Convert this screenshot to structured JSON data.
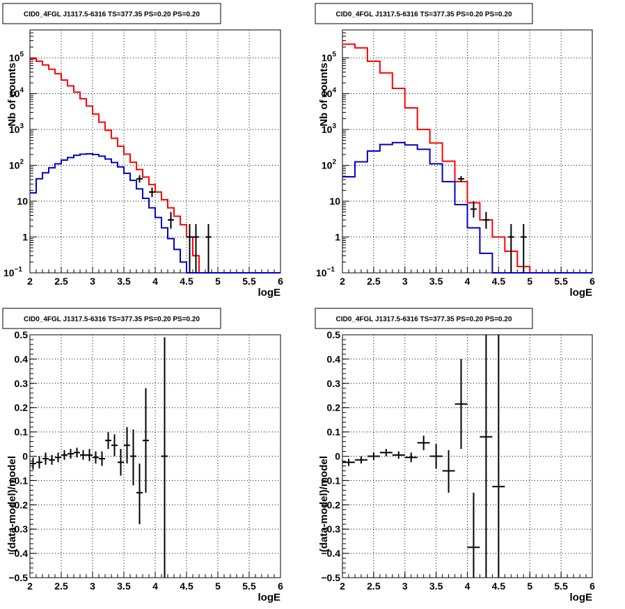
{
  "chart_data": [
    {
      "id": "top-left",
      "type": "histogram",
      "title": "CID0_4FGL J1317.5-6316 TS=377.35 PS=0.20 PS=0.20",
      "xlabel": "logE",
      "ylabel": "Nb of counts",
      "xlim": [
        2,
        6
      ],
      "ylim": [
        0.1,
        600000
      ],
      "yscale": "log",
      "grid": true,
      "xticks": [
        "2",
        "2.5",
        "3",
        "3.5",
        "4",
        "4.5",
        "5",
        "5.5",
        "6"
      ],
      "yticks": [
        {
          "v": 0.1,
          "label": "10",
          "sup": "−1"
        },
        {
          "v": 1,
          "label": "1",
          "sup": ""
        },
        {
          "v": 10,
          "label": "10",
          "sup": ""
        },
        {
          "v": 100,
          "label": "10",
          "sup": "2"
        },
        {
          "v": 1000,
          "label": "10",
          "sup": "3"
        },
        {
          "v": 10000,
          "label": "10",
          "sup": "4"
        },
        {
          "v": 100000,
          "label": "10",
          "sup": "5"
        }
      ],
      "bin_edges": [
        2.0,
        2.1,
        2.2,
        2.3,
        2.4,
        2.5,
        2.6,
        2.7,
        2.8,
        2.9,
        3.0,
        3.1,
        3.2,
        3.3,
        3.4,
        3.5,
        3.6,
        3.7,
        3.8,
        3.9,
        4.0,
        4.1,
        4.2,
        4.3,
        4.4,
        4.5,
        4.6,
        4.7,
        4.8,
        4.9,
        5.0,
        5.1,
        5.2,
        5.3,
        5.4,
        5.5,
        5.6,
        5.7,
        5.8,
        5.9,
        6.0
      ],
      "series": [
        {
          "kind": "step",
          "color": "#ff0000",
          "values": [
            95000,
            80000,
            63000,
            48000,
            36000,
            24000,
            16500,
            11000,
            7200,
            4500,
            2700,
            1600,
            950,
            570,
            340,
            205,
            122,
            76,
            47,
            29,
            18,
            11,
            6.5,
            3.8,
            2.2,
            1.0,
            0.3,
            0.1,
            0.1,
            0.1,
            0.1,
            0.1,
            0.1,
            0.1,
            0.1,
            0.1,
            0.1,
            0.1,
            0.1,
            0.1
          ]
        },
        {
          "kind": "step",
          "color": "#0000cc",
          "values": [
            17,
            42,
            62,
            85,
            110,
            140,
            165,
            190,
            205,
            210,
            200,
            180,
            150,
            120,
            90,
            60,
            38,
            22,
            12,
            6.5,
            3.5,
            1.8,
            0.9,
            0.45,
            0.2,
            0.1,
            0.1,
            0.1,
            0.1,
            0.1,
            0.1,
            0.1,
            0.1,
            0.1,
            0.1,
            0.1,
            0.1,
            0.1,
            0.1,
            0.1
          ]
        },
        {
          "kind": "points",
          "color": "#000000",
          "points": [
            {
              "x": 3.75,
              "y": 42,
              "lo": 33,
              "hi": 53
            },
            {
              "x": 3.95,
              "y": 18,
              "lo": 13,
              "hi": 24
            },
            {
              "x": 4.25,
              "y": 3,
              "lo": 1.7,
              "hi": 5
            },
            {
              "x": 4.55,
              "y": 1,
              "lo": 0.1,
              "hi": 2.3
            },
            {
              "x": 4.65,
              "y": 1,
              "lo": 0.1,
              "hi": 2.3
            },
            {
              "x": 4.85,
              "y": 1,
              "lo": 0.1,
              "hi": 2.3
            }
          ]
        }
      ]
    },
    {
      "id": "top-right",
      "type": "histogram",
      "title": "CID0_4FGL J1317.5-6316 TS=377.35 PS=0.20 PS=0.20",
      "xlabel": "logE",
      "ylabel": "Nb of counts",
      "xlim": [
        2,
        6
      ],
      "ylim": [
        0.1,
        600000
      ],
      "yscale": "log",
      "grid": true,
      "xticks": [
        "2",
        "2.5",
        "3",
        "3.5",
        "4",
        "4.5",
        "5",
        "5.5",
        "6"
      ],
      "yticks": [
        {
          "v": 0.1,
          "label": "10",
          "sup": "−1"
        },
        {
          "v": 1,
          "label": "1",
          "sup": ""
        },
        {
          "v": 10,
          "label": "10",
          "sup": ""
        },
        {
          "v": 100,
          "label": "10",
          "sup": "2"
        },
        {
          "v": 1000,
          "label": "10",
          "sup": "3"
        },
        {
          "v": 10000,
          "label": "10",
          "sup": "4"
        },
        {
          "v": 100000,
          "label": "10",
          "sup": "5"
        }
      ],
      "bin_edges": [
        2.0,
        2.2,
        2.4,
        2.6,
        2.8,
        3.0,
        3.2,
        3.4,
        3.6,
        3.8,
        4.0,
        4.2,
        4.4,
        4.6,
        4.8,
        5.0,
        5.2,
        5.4,
        5.6,
        5.8,
        6.0
      ],
      "series": [
        {
          "kind": "step",
          "color": "#ff0000",
          "values": [
            240000,
            190000,
            80000,
            38000,
            14000,
            4000,
            1000,
            420,
            130,
            35,
            9,
            3,
            1,
            0.4,
            0.15,
            0.1,
            0.1,
            0.1,
            0.1,
            0.1
          ]
        },
        {
          "kind": "step",
          "color": "#0000cc",
          "values": [
            48,
            125,
            250,
            380,
            430,
            370,
            280,
            110,
            35,
            8,
            1.8,
            0.35,
            0.1,
            0.1,
            0.1,
            0.1,
            0.1,
            0.1,
            0.1,
            0.1
          ]
        },
        {
          "kind": "points",
          "color": "#000000",
          "points": [
            {
              "x": 3.9,
              "y": 42,
              "lo": 35,
              "hi": 50
            },
            {
              "x": 4.1,
              "y": 6,
              "lo": 3.5,
              "hi": 10
            },
            {
              "x": 4.3,
              "y": 3,
              "lo": 1.7,
              "hi": 5
            },
            {
              "x": 4.7,
              "y": 1,
              "lo": 0.1,
              "hi": 2.3
            },
            {
              "x": 4.9,
              "y": 1,
              "lo": 0.1,
              "hi": 2.3
            }
          ]
        }
      ]
    },
    {
      "id": "bottom-left",
      "type": "scatter",
      "title": "CID0_4FGL J1317.5-6316 TS=377.35 PS=0.20 PS=0.20",
      "xlabel": "logE",
      "ylabel": "(data-model)/model",
      "xlim": [
        2,
        6
      ],
      "ylim": [
        -0.5,
        0.5
      ],
      "yscale": "linear",
      "grid": true,
      "xticks": [
        "2",
        "2.5",
        "3",
        "3.5",
        "4",
        "4.5",
        "5",
        "5.5",
        "6"
      ],
      "yticks": [
        {
          "v": -0.5,
          "label": "−0.5",
          "sup": ""
        },
        {
          "v": -0.4,
          "label": "−0.4",
          "sup": ""
        },
        {
          "v": -0.3,
          "label": "−0.3",
          "sup": ""
        },
        {
          "v": -0.2,
          "label": "−0.2",
          "sup": ""
        },
        {
          "v": -0.1,
          "label": "−0.1",
          "sup": ""
        },
        {
          "v": 0,
          "label": "0",
          "sup": ""
        },
        {
          "v": 0.1,
          "label": "0.1",
          "sup": ""
        },
        {
          "v": 0.2,
          "label": "0.2",
          "sup": ""
        },
        {
          "v": 0.3,
          "label": "0.3",
          "sup": ""
        },
        {
          "v": 0.4,
          "label": "0.4",
          "sup": ""
        },
        {
          "v": 0.5,
          "label": "0.5",
          "sup": ""
        }
      ],
      "series": [
        {
          "kind": "points",
          "color": "#000000",
          "xerr": 0.05,
          "points": [
            {
              "x": 2.05,
              "y": -0.03,
              "lo": -0.055,
              "hi": -0.005
            },
            {
              "x": 2.15,
              "y": -0.025,
              "lo": -0.05,
              "hi": 0.0
            },
            {
              "x": 2.25,
              "y": -0.01,
              "lo": -0.035,
              "hi": 0.015
            },
            {
              "x": 2.35,
              "y": -0.015,
              "lo": -0.035,
              "hi": 0.005
            },
            {
              "x": 2.45,
              "y": -0.005,
              "lo": -0.025,
              "hi": 0.015
            },
            {
              "x": 2.55,
              "y": 0.005,
              "lo": -0.015,
              "hi": 0.025
            },
            {
              "x": 2.65,
              "y": 0.01,
              "lo": -0.01,
              "hi": 0.03
            },
            {
              "x": 2.75,
              "y": 0.015,
              "lo": -0.005,
              "hi": 0.035
            },
            {
              "x": 2.85,
              "y": 0.005,
              "lo": -0.015,
              "hi": 0.025
            },
            {
              "x": 2.95,
              "y": 0.005,
              "lo": -0.02,
              "hi": 0.03
            },
            {
              "x": 3.05,
              "y": -0.005,
              "lo": -0.03,
              "hi": 0.02
            },
            {
              "x": 3.15,
              "y": -0.01,
              "lo": -0.04,
              "hi": 0.02
            },
            {
              "x": 3.25,
              "y": 0.065,
              "lo": 0.03,
              "hi": 0.1
            },
            {
              "x": 3.35,
              "y": 0.045,
              "lo": 0.0,
              "hi": 0.09
            },
            {
              "x": 3.45,
              "y": -0.025,
              "lo": -0.08,
              "hi": 0.03
            },
            {
              "x": 3.55,
              "y": 0.045,
              "lo": -0.03,
              "hi": 0.12
            },
            {
              "x": 3.65,
              "y": 0.0,
              "lo": -0.12,
              "hi": 0.11
            },
            {
              "x": 3.75,
              "y": -0.15,
              "lo": -0.28,
              "hi": -0.03
            },
            {
              "x": 3.85,
              "y": 0.065,
              "lo": -0.15,
              "hi": 0.28
            },
            {
              "x": 4.15,
              "y": 0.0,
              "lo": -0.5,
              "hi": 0.49
            }
          ]
        }
      ]
    },
    {
      "id": "bottom-right",
      "type": "scatter",
      "title": "CID0_4FGL J1317.5-6316 TS=377.35 PS=0.20 PS=0.20",
      "xlabel": "logE",
      "ylabel": "(data-model)/model",
      "xlim": [
        2,
        6
      ],
      "ylim": [
        -0.5,
        0.5
      ],
      "yscale": "linear",
      "grid": true,
      "xticks": [
        "2",
        "2.5",
        "3",
        "3.5",
        "4",
        "4.5",
        "5",
        "5.5",
        "6"
      ],
      "yticks": [
        {
          "v": -0.5,
          "label": "−0.5",
          "sup": ""
        },
        {
          "v": -0.4,
          "label": "−0.4",
          "sup": ""
        },
        {
          "v": -0.3,
          "label": "−0.3",
          "sup": ""
        },
        {
          "v": -0.2,
          "label": "−0.2",
          "sup": ""
        },
        {
          "v": -0.1,
          "label": "−0.1",
          "sup": ""
        },
        {
          "v": 0,
          "label": "0",
          "sup": ""
        },
        {
          "v": 0.1,
          "label": "0.1",
          "sup": ""
        },
        {
          "v": 0.2,
          "label": "0.2",
          "sup": ""
        },
        {
          "v": 0.3,
          "label": "0.3",
          "sup": ""
        },
        {
          "v": 0.4,
          "label": "0.4",
          "sup": ""
        },
        {
          "v": 0.5,
          "label": "0.5",
          "sup": ""
        }
      ],
      "series": [
        {
          "kind": "points",
          "color": "#000000",
          "xerr": 0.1,
          "points": [
            {
              "x": 2.1,
              "y": -0.025,
              "lo": -0.04,
              "hi": -0.01
            },
            {
              "x": 2.3,
              "y": -0.015,
              "lo": -0.03,
              "hi": 0.0
            },
            {
              "x": 2.5,
              "y": 0.0,
              "lo": -0.015,
              "hi": 0.015
            },
            {
              "x": 2.7,
              "y": 0.015,
              "lo": 0.0,
              "hi": 0.03
            },
            {
              "x": 2.9,
              "y": 0.005,
              "lo": -0.01,
              "hi": 0.02
            },
            {
              "x": 3.1,
              "y": -0.005,
              "lo": -0.025,
              "hi": 0.015
            },
            {
              "x": 3.3,
              "y": 0.055,
              "lo": 0.025,
              "hi": 0.085
            },
            {
              "x": 3.5,
              "y": 0.0,
              "lo": -0.05,
              "hi": 0.05
            },
            {
              "x": 3.7,
              "y": -0.06,
              "lo": -0.15,
              "hi": 0.025
            },
            {
              "x": 3.9,
              "y": 0.215,
              "lo": 0.03,
              "hi": 0.4
            },
            {
              "x": 4.1,
              "y": -0.375,
              "lo": -0.5,
              "hi": -0.15
            },
            {
              "x": 4.3,
              "y": 0.08,
              "lo": -0.5,
              "hi": 0.5
            },
            {
              "x": 4.5,
              "y": -0.125,
              "lo": -0.5,
              "hi": 0.5
            }
          ]
        }
      ]
    }
  ]
}
